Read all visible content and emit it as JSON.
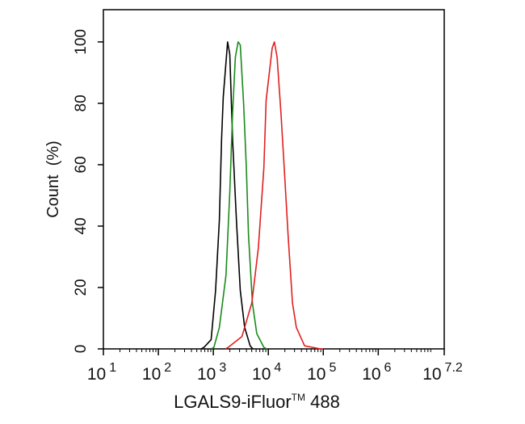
{
  "chart_data": {
    "type": "line",
    "title": "",
    "xlabel": "LGALS9-iFluor",
    "xlabel_tm": "TM",
    "xlabel_suffix": " 488",
    "ylabel": "Count  (%)",
    "xscale": "log10",
    "xlim_log10": [
      1,
      7.2
    ],
    "ylim": [
      0,
      110.5
    ],
    "x_ticks": [
      {
        "base": "10",
        "exp": "1",
        "value": 1
      },
      {
        "base": "10",
        "exp": "2",
        "value": 2
      },
      {
        "base": "10",
        "exp": "3",
        "value": 3
      },
      {
        "base": "10",
        "exp": "4",
        "value": 4
      },
      {
        "base": "10",
        "exp": "5",
        "value": 5
      },
      {
        "base": "10",
        "exp": "6",
        "value": 6
      },
      {
        "base": "10",
        "exp": "7.2",
        "value": 7.2
      }
    ],
    "y_ticks": [
      "0",
      "20",
      "40",
      "60",
      "80",
      "100"
    ],
    "grid": false,
    "series": [
      {
        "name": "black",
        "color": "#000000",
        "log10_x": [
          2.83,
          2.96,
          3.04,
          3.11,
          3.15,
          3.18,
          3.26,
          3.3,
          3.35,
          3.42,
          3.49,
          3.57,
          3.67
        ],
        "y": [
          0.5,
          3,
          19,
          42,
          68,
          82,
          100,
          96,
          68,
          42,
          19,
          7,
          1
        ]
      },
      {
        "name": "green",
        "color": "#1a8a1a",
        "log10_x": [
          3.01,
          3.11,
          3.23,
          3.3,
          3.35,
          3.4,
          3.45,
          3.49,
          3.55,
          3.6,
          3.64,
          3.71,
          3.79,
          3.92
        ],
        "y": [
          0.5,
          7,
          24,
          51,
          77,
          95,
          100,
          99,
          80,
          59,
          37,
          15,
          5,
          0.5
        ]
      },
      {
        "name": "red",
        "color": "#e02020",
        "log10_x": [
          3.27,
          3.52,
          3.7,
          3.82,
          3.92,
          3.96,
          4.07,
          4.11,
          4.16,
          4.23,
          4.29,
          4.36,
          4.44,
          4.51,
          4.66,
          4.95
        ],
        "y": [
          0.5,
          4,
          15,
          33,
          59,
          81,
          98,
          100,
          95,
          77,
          59,
          37,
          15,
          7,
          1,
          0
        ]
      }
    ]
  }
}
